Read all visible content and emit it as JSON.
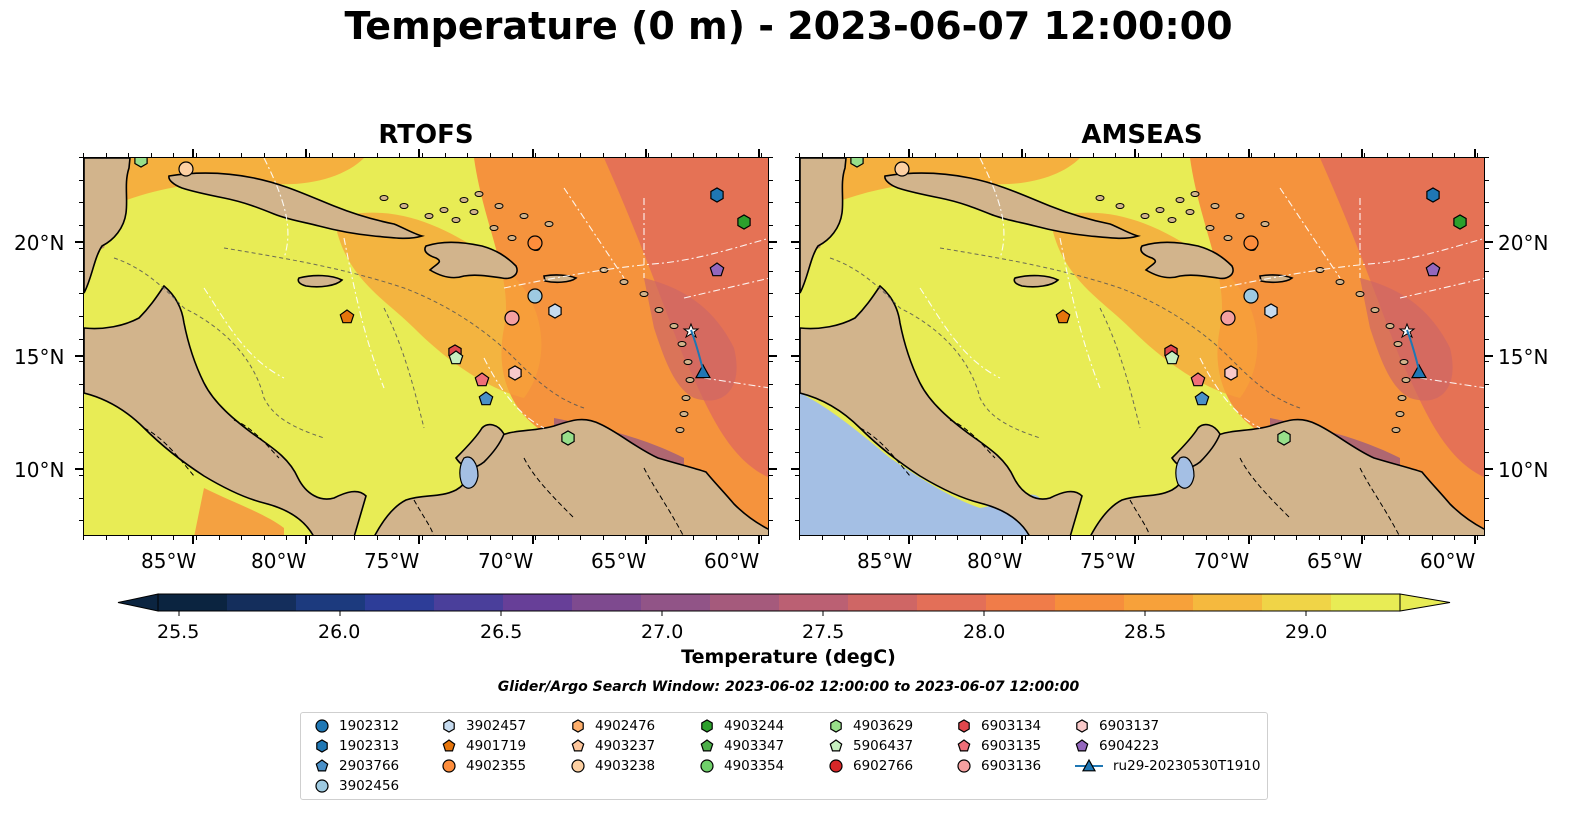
{
  "title": "Temperature (0 m) - 2023-06-07 12:00:00",
  "panels": [
    {
      "title": "RTOFS"
    },
    {
      "title": "AMSEAS"
    }
  ],
  "axes": {
    "lat_labels": [
      "20°N",
      "15°N",
      "10°N"
    ],
    "lon_labels": [
      "85°W",
      "80°W",
      "75°W",
      "70°W",
      "65°W",
      "60°W"
    ]
  },
  "colorbar": {
    "label": "Temperature (degC)",
    "ticks": [
      "25.5",
      "26.0",
      "26.5",
      "27.0",
      "27.5",
      "28.0",
      "28.5",
      "29.0"
    ],
    "colors": [
      "#0b2440",
      "#142e5c",
      "#1c3a7e",
      "#2d3d98",
      "#4a3f9b",
      "#673f98",
      "#7e4a8f",
      "#915487",
      "#a55a7c",
      "#bb6073",
      "#cf6665",
      "#e36f58",
      "#f07c49",
      "#f68e3c",
      "#f7a13a",
      "#f5b93e",
      "#f0d447",
      "#e8ec55"
    ],
    "extend": "both"
  },
  "search_window": "Glider/Argo Search Window: 2023-06-02 12:00:00 to 2023-06-07 12:00:00",
  "legend": {
    "entries": [
      {
        "label": "1902312",
        "marker": "circle",
        "color": "#1f77b4"
      },
      {
        "label": "1902313",
        "marker": "hexagon",
        "color": "#1f77b4"
      },
      {
        "label": "2903766",
        "marker": "pentagon",
        "color": "#4a90c8"
      },
      {
        "label": "3902456",
        "marker": "circle",
        "color": "#9ecae1"
      },
      {
        "label": "3902457",
        "marker": "hexagon",
        "color": "#c6dbef"
      },
      {
        "label": "4901719",
        "marker": "pentagon",
        "color": "#e6750c"
      },
      {
        "label": "4902355",
        "marker": "circle",
        "color": "#fd8d3c"
      },
      {
        "label": "4902476",
        "marker": "hexagon",
        "color": "#fdae6b"
      },
      {
        "label": "4903237",
        "marker": "pentagon",
        "color": "#fdc69c"
      },
      {
        "label": "4903238",
        "marker": "circle",
        "color": "#fdd0a2"
      },
      {
        "label": "4903244",
        "marker": "hexagon",
        "color": "#2ca02c"
      },
      {
        "label": "4903347",
        "marker": "pentagon",
        "color": "#4daf4a"
      },
      {
        "label": "4903354",
        "marker": "circle",
        "color": "#6fcf6a"
      },
      {
        "label": "4903629",
        "marker": "hexagon",
        "color": "#98df8a"
      },
      {
        "label": "5906437",
        "marker": "pentagon",
        "color": "#c7f0c0"
      },
      {
        "label": "6902766",
        "marker": "circle",
        "color": "#d62728"
      },
      {
        "label": "6903134",
        "marker": "hexagon",
        "color": "#e0474c"
      },
      {
        "label": "6903135",
        "marker": "pentagon",
        "color": "#ef6f78"
      },
      {
        "label": "6903136",
        "marker": "circle",
        "color": "#f4a0a0"
      },
      {
        "label": "6903137",
        "marker": "hexagon",
        "color": "#f9c9c9"
      },
      {
        "label": "6904223",
        "marker": "pentagon",
        "color": "#9467bd"
      },
      {
        "label": "ru29-20230530T1910",
        "marker": "triangle-line",
        "color": "#1f77b4"
      }
    ]
  },
  "map_layers": [
    "sea-surface-temperature",
    "land",
    "coastline",
    "borders",
    "bathymetry-contours",
    "eez-boundaries",
    "float-markers",
    "glider-track"
  ],
  "land_color": "#d2b48c",
  "ocean_color": "#a4bfe4"
}
